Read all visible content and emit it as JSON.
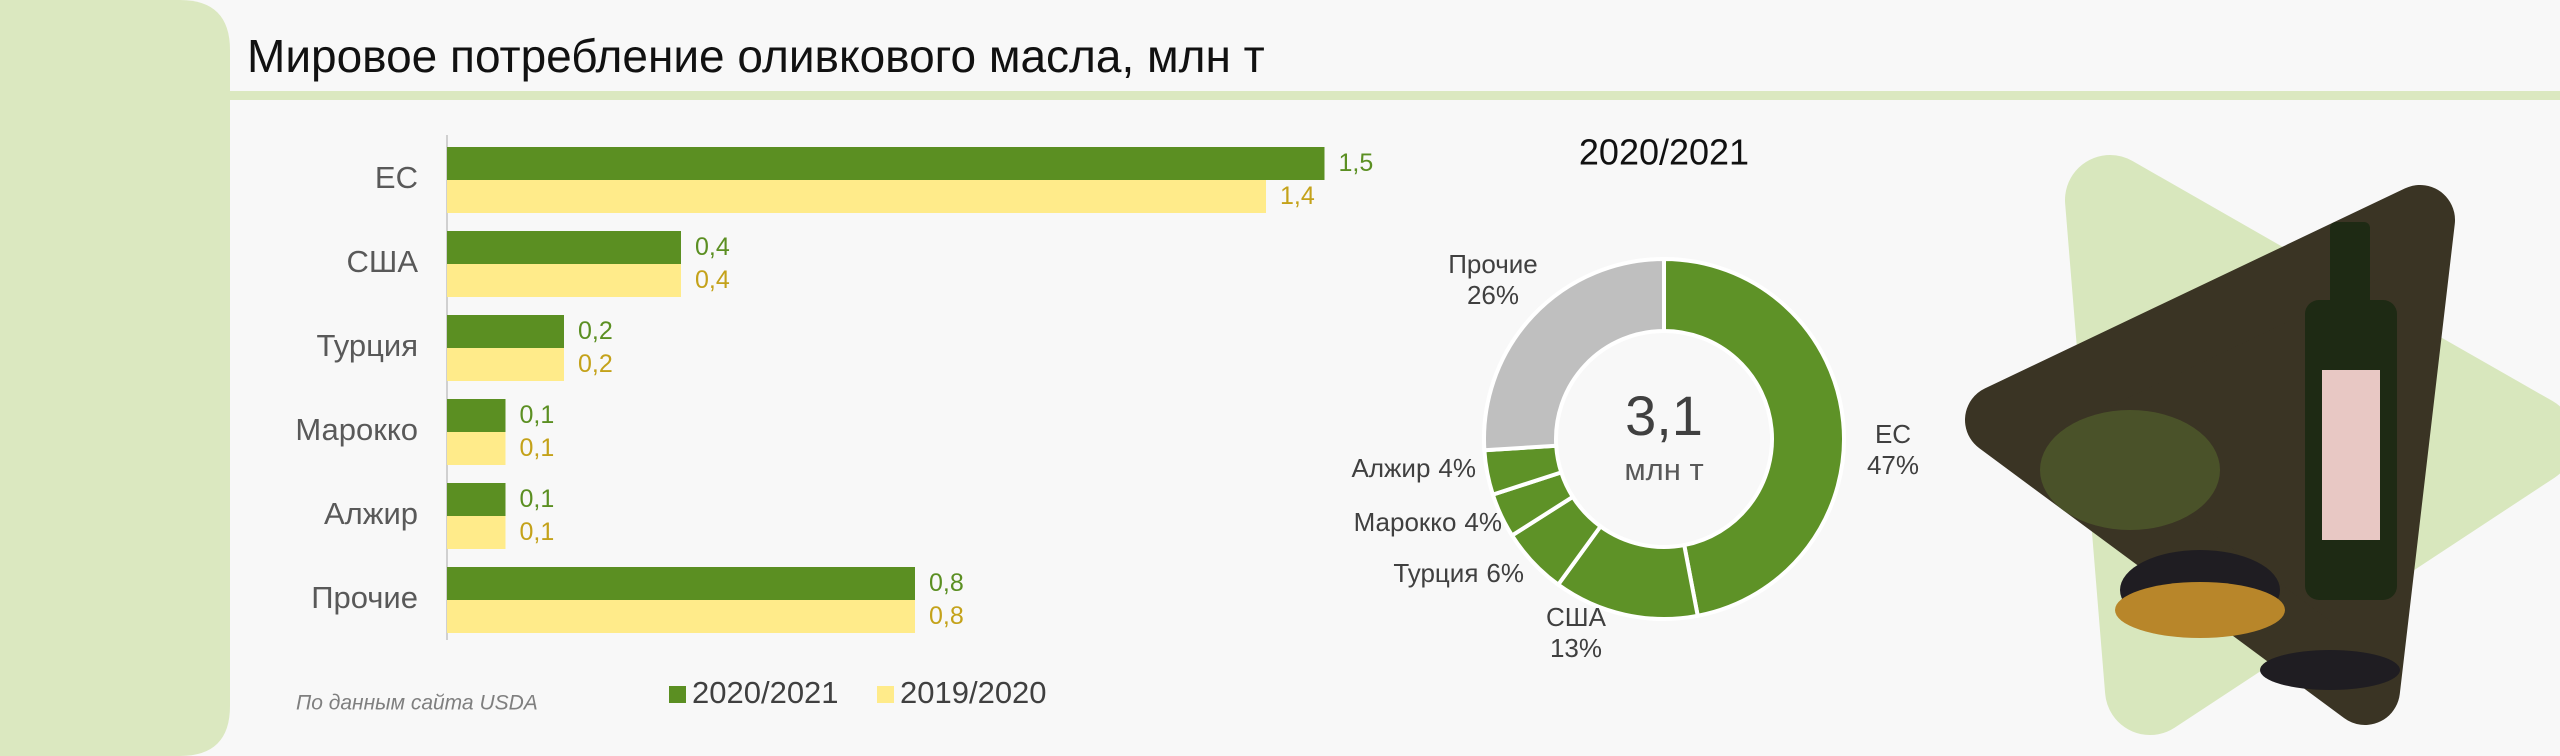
{
  "title": "Мировое потребление оливкового масла, млн т",
  "source": "По данным сайта USDA",
  "chart_data": [
    {
      "type": "bar",
      "orientation": "horizontal",
      "categories": [
        "ЕС",
        "США",
        "Турция",
        "Марокко",
        "Алжир",
        "Прочие"
      ],
      "series": [
        {
          "name": "2020/2021",
          "color": "#5b8f22",
          "label_color": "#5b8f22",
          "values": [
            1.5,
            0.4,
            0.2,
            0.1,
            0.1,
            0.8
          ],
          "value_labels": [
            "1,5",
            "0,4",
            "0,2",
            "0,1",
            "0,1",
            "0,8"
          ]
        },
        {
          "name": "2019/2020",
          "color": "#ffeb8a",
          "label_color": "#c4a21a",
          "values": [
            1.4,
            0.4,
            0.2,
            0.1,
            0.1,
            0.8
          ],
          "value_labels": [
            "1,4",
            "0,4",
            "0,2",
            "0,1",
            "0,1",
            "0,8"
          ]
        }
      ]
    },
    {
      "type": "pie",
      "title": "2020/2021",
      "center_value": "3,1",
      "center_unit": "млн т",
      "categories": [
        "ЕС",
        "США",
        "Турция",
        "Марокко",
        "Алжир",
        "Прочие"
      ],
      "values": [
        47,
        13,
        6,
        4,
        4,
        26
      ],
      "value_labels": [
        "47%",
        "13%",
        "6%",
        "4%",
        "4%",
        "26%"
      ],
      "colors": [
        "#5e9227",
        "#5e9227",
        "#5e9227",
        "#5e9227",
        "#5e9227",
        "#bfbfbf"
      ]
    }
  ]
}
